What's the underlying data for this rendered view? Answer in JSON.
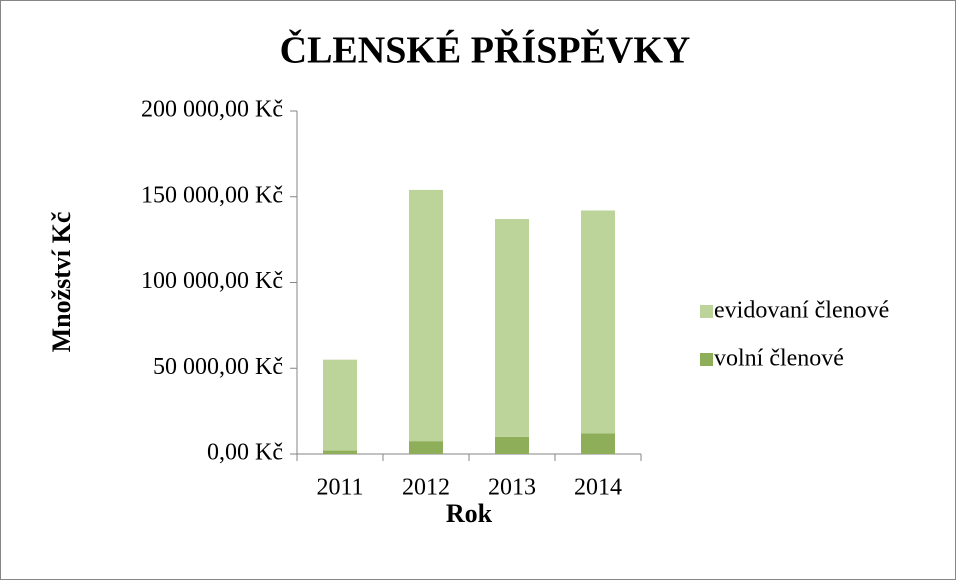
{
  "chart_data": {
    "type": "stacked_bar",
    "title": "ČLENSKÉ PŘÍSPĚVKY",
    "x_label": "Rok",
    "y_label": "Množství Kč",
    "categories": [
      "2011",
      "2012",
      "2013",
      "2014"
    ],
    "series": [
      {
        "name": "volní členové",
        "color": "#8fae5a",
        "values": [
          2000,
          7500,
          10000,
          12000
        ]
      },
      {
        "name": "evidovaní členové",
        "color": "#bcd39a",
        "values": [
          53000,
          146500,
          127000,
          130000
        ]
      }
    ],
    "ylim": [
      0,
      200000
    ],
    "yticks": [
      {
        "value": 0,
        "label": "0,00 Kč"
      },
      {
        "value": 50000,
        "label": "50 000,00 Kč"
      },
      {
        "value": 100000,
        "label": "100 000,00 Kč"
      },
      {
        "value": 150000,
        "label": "150 000,00 Kč"
      },
      {
        "value": 200000,
        "label": "200 000,00 Kč"
      }
    ],
    "grid": false,
    "legend": "right"
  }
}
